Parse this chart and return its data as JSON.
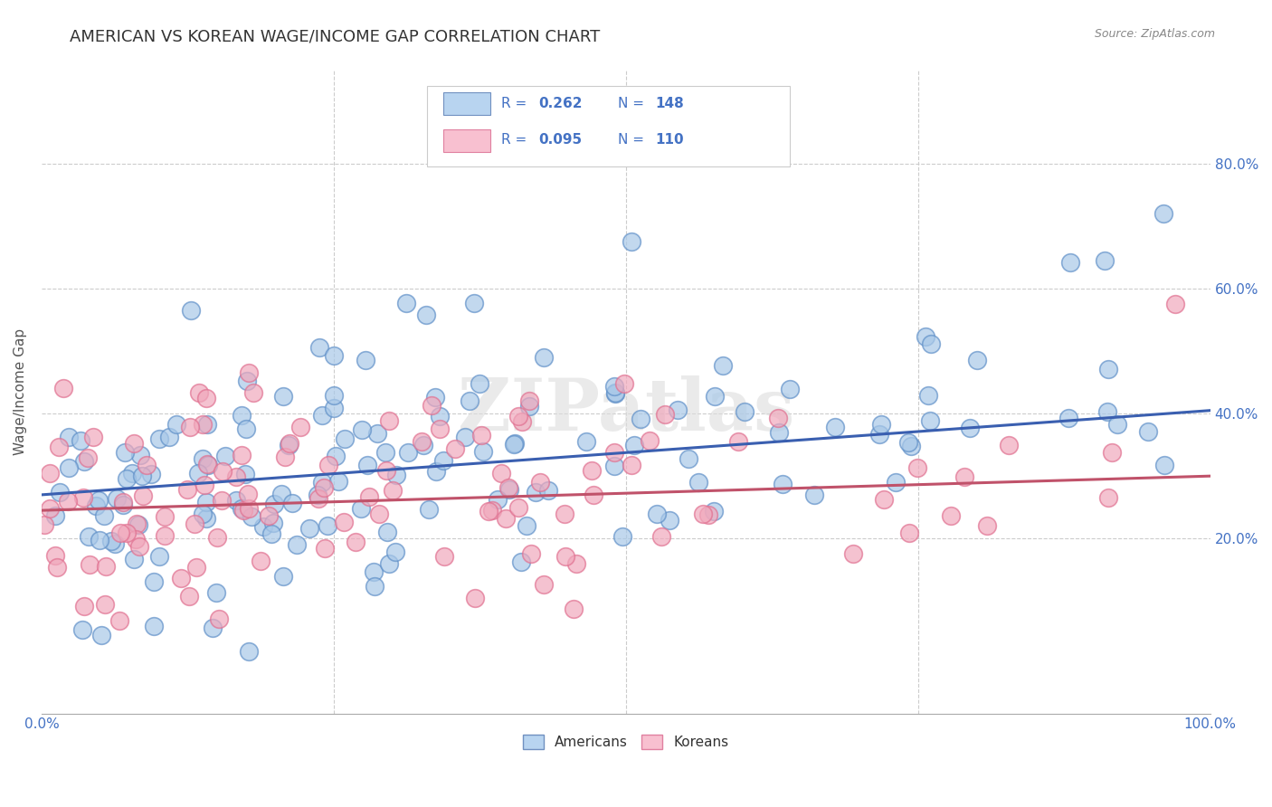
{
  "title": "AMERICAN VS KOREAN WAGE/INCOME GAP CORRELATION CHART",
  "source": "Source: ZipAtlas.com",
  "ylabel": "Wage/Income Gap",
  "watermark": "ZIPatlas",
  "legend_entries": [
    {
      "label": "Americans",
      "R": 0.262,
      "N": 148
    },
    {
      "label": "Koreans",
      "R": 0.095,
      "N": 110
    }
  ],
  "line_color_american": "#3a5fb0",
  "line_color_korean": "#c0526a",
  "scatter_fill_american": "#a8c8e8",
  "scatter_fill_korean": "#f0a8bc",
  "scatter_edge_american": "#6090c8",
  "scatter_edge_korean": "#e07090",
  "legend_patch_american": "#b8d4f0",
  "legend_patch_korean": "#f8c0d0",
  "legend_patch_edge_american": "#7090c0",
  "legend_patch_edge_korean": "#e080a0",
  "xlim": [
    0.0,
    1.0
  ],
  "ylim": [
    -0.08,
    0.95
  ],
  "ytick_positions": [
    0.2,
    0.4,
    0.6,
    0.8
  ],
  "ytick_labels": [
    "20.0%",
    "40.0%",
    "60.0%",
    "80.0%"
  ],
  "grid_color": "#cccccc",
  "text_blue": "#4472C4",
  "title_fontsize": 13,
  "axis_label_fontsize": 11,
  "tick_fontsize": 11,
  "american_intercept": 0.27,
  "american_slope": 0.135,
  "korean_intercept": 0.245,
  "korean_slope": 0.055,
  "seed": 42
}
